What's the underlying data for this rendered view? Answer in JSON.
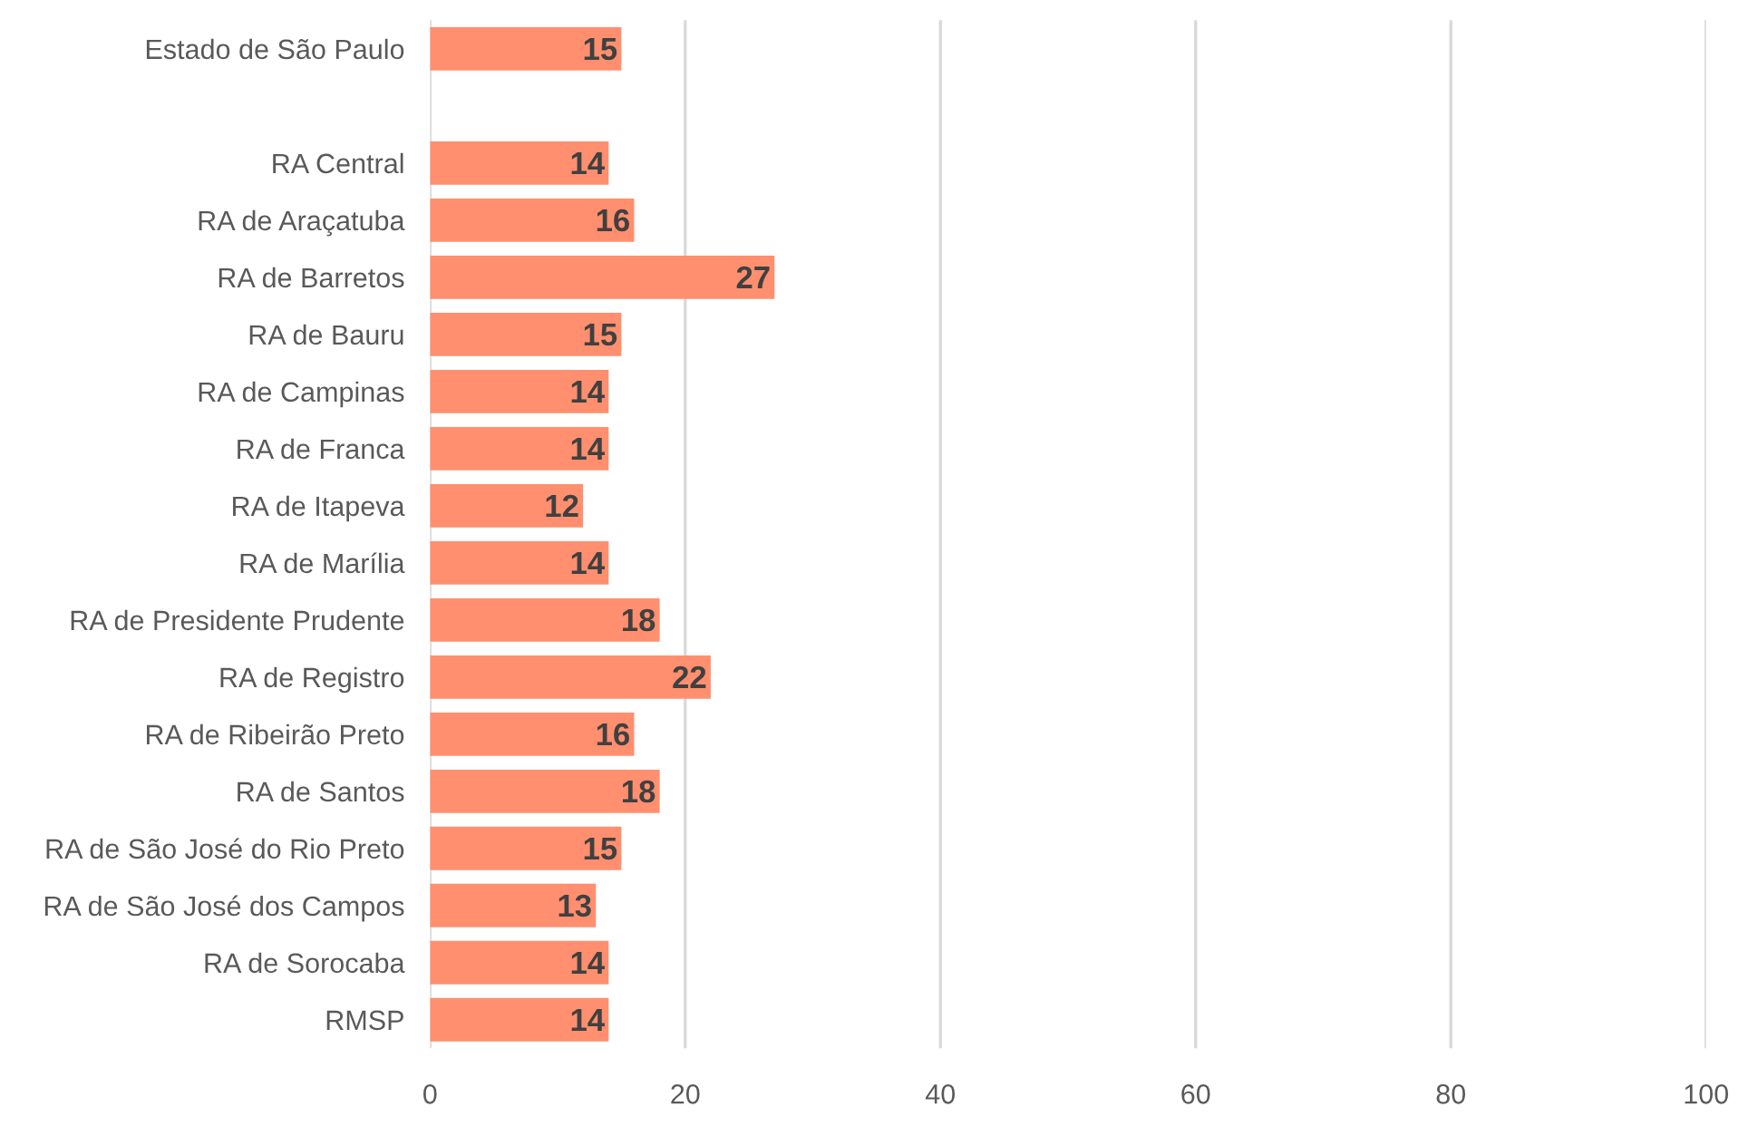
{
  "chart_data": {
    "type": "bar",
    "orientation": "horizontal",
    "categories": [
      "Estado de São Paulo",
      null,
      "RA Central",
      "RA de Araçatuba",
      "RA de Barretos",
      "RA de Bauru",
      "RA de Campinas",
      "RA de Franca",
      "RA de Itapeva",
      "RA de Marília",
      "RA de Presidente Prudente",
      "RA de Registro",
      "RA de Ribeirão Preto",
      "RA de Santos",
      "RA de São José do Rio Preto",
      "RA de São José dos Campos",
      "RA de Sorocaba",
      "RMSP"
    ],
    "values": [
      15,
      null,
      14,
      16,
      27,
      15,
      14,
      14,
      12,
      14,
      18,
      22,
      16,
      18,
      15,
      13,
      14,
      14
    ],
    "color": "#ff8f6e",
    "xlim": [
      0,
      100
    ],
    "xticks": [
      0,
      20,
      40,
      60,
      80,
      100
    ],
    "grid": "x",
    "data_labels": true
  }
}
